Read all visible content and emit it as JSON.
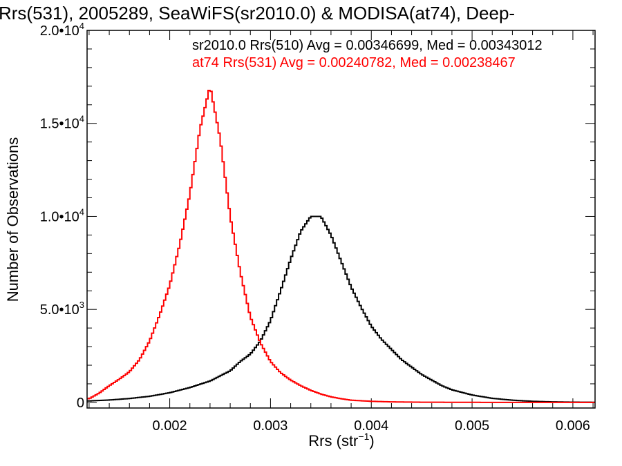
{
  "chart_data": {
    "type": "histogram-step",
    "title": "Rrs(531), 2005289, SeaWiFS(sr2010.0) & MODISA(at74), Deep-",
    "xlabel": {
      "base": "Rrs (str",
      "sup": "−1",
      "end": ")"
    },
    "ylabel": "Number of Observations",
    "xlim": [
      0.00118,
      0.00622
    ],
    "ylim": [
      -300,
      20000
    ],
    "x_ticks": [
      {
        "value": 0.002,
        "label": "0.002"
      },
      {
        "value": 0.003,
        "label": "0.003"
      },
      {
        "value": 0.004,
        "label": "0.004"
      },
      {
        "value": 0.005,
        "label": "0.005"
      },
      {
        "value": 0.006,
        "label": "0.006"
      }
    ],
    "y_ticks": [
      {
        "value": 0,
        "mant": "0",
        "exp": ""
      },
      {
        "value": 5000,
        "mant": "5.0•10",
        "exp": "3"
      },
      {
        "value": 10000,
        "mant": "1.0•10",
        "exp": "4"
      },
      {
        "value": 15000,
        "mant": "1.5•10",
        "exp": "4"
      },
      {
        "value": 20000,
        "mant": "2.0•10",
        "exp": "4"
      }
    ],
    "series": [
      {
        "name": "sr2010.0 Rrs(510) Avg = 0.00346699, Med = 0.00343012",
        "color": "#000000",
        "points": [
          [
            0.0012,
            80
          ],
          [
            0.0014,
            130
          ],
          [
            0.0016,
            210
          ],
          [
            0.0018,
            330
          ],
          [
            0.002,
            520
          ],
          [
            0.0022,
            800
          ],
          [
            0.0024,
            1150
          ],
          [
            0.0026,
            1700
          ],
          [
            0.0027,
            2200
          ],
          [
            0.0028,
            2600
          ],
          [
            0.0029,
            3300
          ],
          [
            0.003,
            4400
          ],
          [
            0.0031,
            6000
          ],
          [
            0.0032,
            7700
          ],
          [
            0.0033,
            9200
          ],
          [
            0.0034,
            10000
          ],
          [
            0.0035,
            10000
          ],
          [
            0.0036,
            9000
          ],
          [
            0.0037,
            7600
          ],
          [
            0.0038,
            6200
          ],
          [
            0.0039,
            5100
          ],
          [
            0.004,
            4100
          ],
          [
            0.0041,
            3400
          ],
          [
            0.0042,
            2850
          ],
          [
            0.0043,
            2300
          ],
          [
            0.0044,
            1900
          ],
          [
            0.0045,
            1500
          ],
          [
            0.0046,
            1200
          ],
          [
            0.0047,
            900
          ],
          [
            0.0048,
            680
          ],
          [
            0.005,
            400
          ],
          [
            0.0052,
            220
          ],
          [
            0.0054,
            120
          ],
          [
            0.0056,
            60
          ],
          [
            0.0058,
            30
          ],
          [
            0.006,
            15
          ],
          [
            0.0062,
            8
          ]
        ]
      },
      {
        "name": "at74 Rrs(531) Avg = 0.00240782, Med = 0.00238467",
        "color": "#ff0000",
        "points": [
          [
            0.0012,
            200
          ],
          [
            0.0013,
            500
          ],
          [
            0.0014,
            900
          ],
          [
            0.0015,
            1250
          ],
          [
            0.0016,
            1650
          ],
          [
            0.0017,
            2300
          ],
          [
            0.0018,
            3300
          ],
          [
            0.0019,
            4700
          ],
          [
            0.002,
            6300
          ],
          [
            0.0021,
            8500
          ],
          [
            0.0022,
            11200
          ],
          [
            0.0023,
            14700
          ],
          [
            0.0024,
            17000
          ],
          [
            0.0025,
            14200
          ],
          [
            0.0026,
            10000
          ],
          [
            0.0027,
            7000
          ],
          [
            0.0028,
            4600
          ],
          [
            0.0029,
            3200
          ],
          [
            0.003,
            2200
          ],
          [
            0.0031,
            1600
          ],
          [
            0.0032,
            1200
          ],
          [
            0.0033,
            900
          ],
          [
            0.0034,
            650
          ],
          [
            0.0035,
            450
          ],
          [
            0.0036,
            300
          ],
          [
            0.0037,
            200
          ],
          [
            0.0038,
            120
          ],
          [
            0.004,
            60
          ],
          [
            0.0042,
            30
          ],
          [
            0.0045,
            12
          ],
          [
            0.005,
            4
          ],
          [
            0.006,
            1
          ],
          [
            0.0062,
            0
          ]
        ]
      }
    ]
  }
}
